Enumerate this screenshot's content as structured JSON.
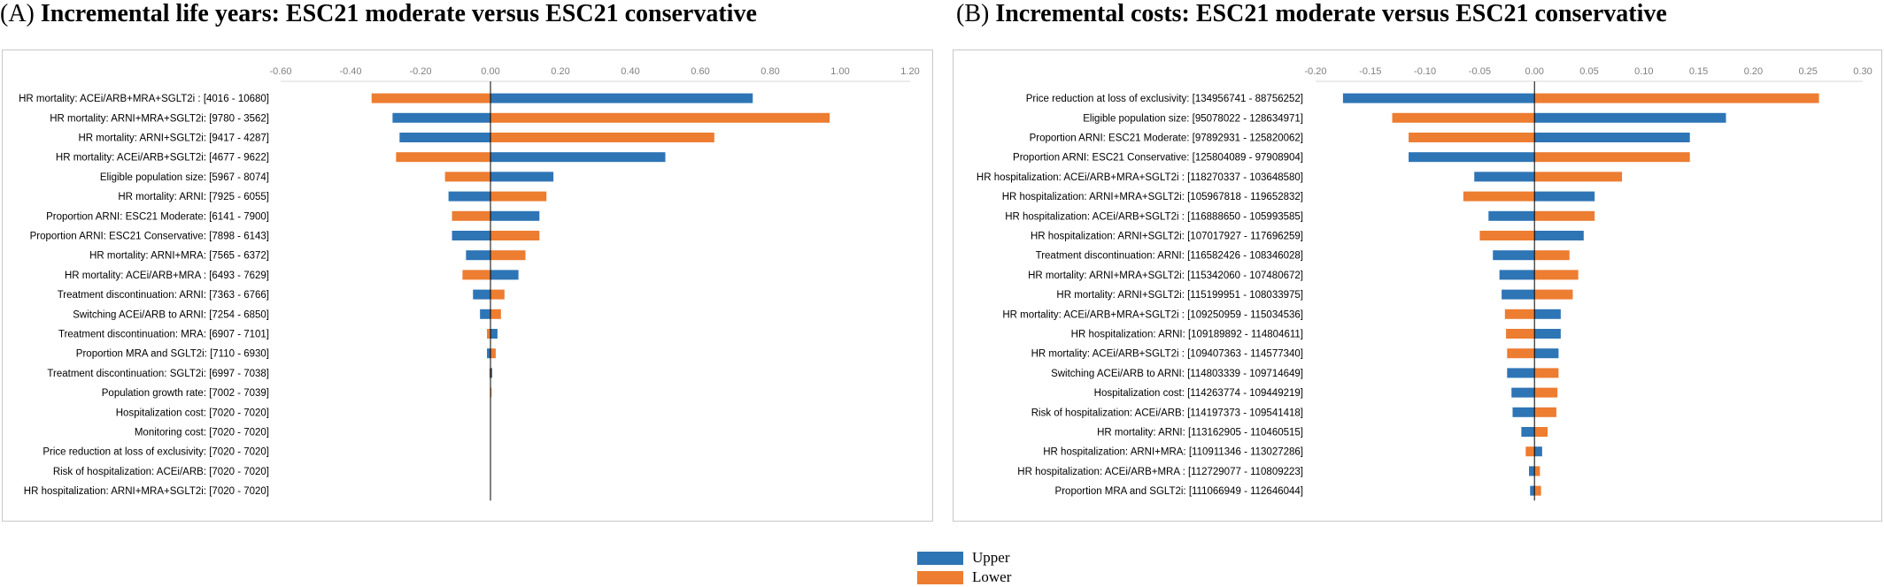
{
  "colors": {
    "upper": "#2E75B6",
    "lower": "#ED7D31",
    "axis": "#000000",
    "grid": "#d9d9d9",
    "tick": "#808080"
  },
  "legend": {
    "upper": "Upper",
    "lower": "Lower"
  },
  "chart_data": [
    {
      "type": "bar",
      "orientation": "horizontal",
      "title_letter": "(A)",
      "title": "Incremental life years: ESC21 moderate versus ESC21 conservative",
      "xlim": [
        -0.6,
        1.2
      ],
      "ticks": [
        -0.6,
        -0.4,
        -0.2,
        0.0,
        0.2,
        0.4,
        0.6,
        0.8,
        1.0,
        1.2
      ],
      "tick_labels": [
        "-0.60",
        "-0.40",
        "-0.20",
        "0.00",
        "0.20",
        "0.40",
        "0.60",
        "0.80",
        "1.00",
        "1.20"
      ],
      "legend_position": "bottom-center",
      "categories": [
        "HR mortality: ACEi/ARB+MRA+SGLT2i : [4016 - 10680]",
        "HR mortality: ARNI+MRA+SGLT2i: [9780 - 3562]",
        "HR mortality: ARNI+SGLT2i: [9417 - 4287]",
        "HR mortality: ACEi/ARB+SGLT2i: [4677 - 9622]",
        "Eligible population size: [5967 - 8074]",
        "HR mortality: ARNI: [7925 - 6055]",
        "Proportion ARNI:  ESC21 Moderate: [6141 - 7900]",
        "Proportion ARNI: ESC21 Conservative: [7898 - 6143]",
        "HR mortality: ARNI+MRA: [7565 - 6372]",
        "HR mortality: ACEi/ARB+MRA : [6493 - 7629]",
        "Treatment discontinuation: ARNI: [7363 - 6766]",
        "Switching ACEi/ARB to ARNI: [7254 - 6850]",
        "Treatment discontinuation: MRA: [6907 - 7101]",
        "Proportion MRA and SGLT2i: [7110 - 6930]",
        "Treatment discontinuation: SGLT2i: [6997 - 7038]",
        "Population growth rate: [7002 - 7039]",
        "Hospitalization cost: [7020 - 7020]",
        "Monitoring cost: [7020 - 7020]",
        "Price reduction at loss of exclusivity: [7020 - 7020]",
        "Risk of hospitalization: ACEi/ARB: [7020 - 7020]",
        "HR hospitalization: ARNI+MRA+SGLT2i: [7020 - 7020]"
      ],
      "series": [
        {
          "name": "Upper",
          "values": [
            0.75,
            -0.28,
            -0.26,
            0.5,
            0.18,
            -0.12,
            0.14,
            -0.11,
            -0.07,
            0.08,
            -0.05,
            -0.03,
            0.02,
            -0.01,
            0.005,
            0.0,
            0.0,
            0.0,
            0.0,
            0.0,
            0.0
          ]
        },
        {
          "name": "Lower",
          "values": [
            -0.34,
            0.97,
            0.64,
            -0.27,
            -0.13,
            0.16,
            -0.11,
            0.14,
            0.1,
            -0.08,
            0.04,
            0.03,
            -0.01,
            0.015,
            -0.003,
            0.003,
            0.0,
            0.0,
            0.0,
            0.0,
            0.0
          ]
        }
      ]
    },
    {
      "type": "bar",
      "orientation": "horizontal",
      "title_letter": "(B)",
      "title": "Incremental costs: ESC21 moderate versus ESC21 conservative",
      "xlim": [
        -0.2,
        0.3
      ],
      "ticks": [
        -0.2,
        -0.15,
        -0.1,
        -0.05,
        0.0,
        0.05,
        0.1,
        0.15,
        0.2,
        0.25,
        0.3
      ],
      "tick_labels": [
        "-0.20",
        "-0.15",
        "-0.10",
        "-0.05",
        "0.00",
        "0.05",
        "0.10",
        "0.15",
        "0.20",
        "0.25",
        "0.30"
      ],
      "legend_position": "bottom-center",
      "categories": [
        "Price reduction at loss of exclusivity: [134956741 - 88756252]",
        "Eligible population size: [95078022 - 128634971]",
        "Proportion ARNI:  ESC21 Moderate: [97892931 - 125820062]",
        "Proportion ARNI: ESC21 Conservative: [125804089 - 97908904]",
        "HR hospitalization: ACEi/ARB+MRA+SGLT2i : [118270337 - 103648580]",
        "HR hospitalization: ARNI+MRA+SGLT2i: [105967818 - 119652832]",
        "HR hospitalization: ACEi/ARB+SGLT2i : [116888650 - 105993585]",
        "HR hospitalization: ARNI+SGLT2i: [107017927 - 117696259]",
        "Treatment discontinuation: ARNI: [116582426 - 108346028]",
        "HR mortality: ARNI+MRA+SGLT2i: [115342060 - 107480672]",
        "HR mortality: ARNI+SGLT2i: [115199951 - 108033975]",
        "HR mortality: ACEi/ARB+MRA+SGLT2i : [109250959 - 115034536]",
        "HR hospitalization: ARNI: [109189892 - 114804611]",
        "HR mortality: ACEi/ARB+SGLT2i : [109407363 - 114577340]",
        "Switching ACEi/ARB to ARNI: [114803339 - 109714649]",
        "Hospitalization cost: [114263774 - 109449219]",
        "Risk of hospitalization: ACEi/ARB: [114197373 - 109541418]",
        "HR mortality: ARNI: [113162905 - 110460515]",
        "HR hospitalization: ARNI+MRA: [110911346 - 113027286]",
        "HR hospitalization: ACEi/ARB+MRA : [112729077 - 110809223]",
        "Proportion MRA and SGLT2i: [111066949 - 112646044]"
      ],
      "series": [
        {
          "name": "Upper",
          "values": [
            -0.175,
            0.175,
            0.142,
            -0.115,
            -0.055,
            0.055,
            -0.042,
            0.045,
            -0.038,
            -0.032,
            -0.03,
            0.024,
            0.024,
            0.022,
            -0.025,
            -0.021,
            -0.02,
            -0.012,
            0.007,
            -0.005,
            -0.004
          ]
        },
        {
          "name": "Lower",
          "values": [
            0.26,
            -0.13,
            -0.115,
            0.142,
            0.08,
            -0.065,
            0.055,
            -0.05,
            0.032,
            0.04,
            0.035,
            -0.027,
            -0.026,
            -0.025,
            0.022,
            0.021,
            0.02,
            0.012,
            -0.008,
            0.005,
            0.006
          ]
        }
      ]
    }
  ]
}
